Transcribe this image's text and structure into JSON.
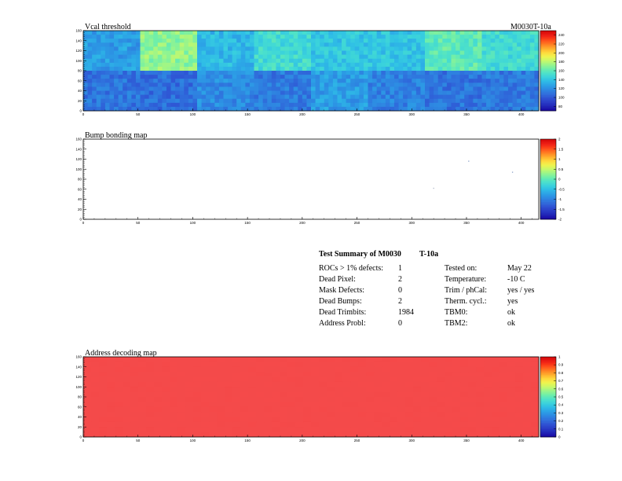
{
  "page": {
    "module_label": "M0030T-10a"
  },
  "chart_data": [
    {
      "type": "heatmap",
      "title": "Vcal threshold",
      "xlim": [
        0,
        416
      ],
      "ylim": [
        0,
        160
      ],
      "x_ticks": [
        "0",
        "50",
        "100",
        "150",
        "200",
        "250",
        "300",
        "350",
        "400"
      ],
      "y_ticks": [
        "0",
        "20",
        "40",
        "60",
        "80",
        "100",
        "120",
        "140",
        "160"
      ],
      "z_ticks": [
        "80",
        "100",
        "120",
        "140",
        "160",
        "180",
        "200",
        "220",
        "240"
      ],
      "zlim": [
        70,
        250
      ],
      "roc_grid": {
        "cols": 8,
        "rows": 2,
        "roc_width": 52,
        "roc_height": 80
      },
      "roc_mean_values": [
        [
          125,
          172,
          135,
          150,
          140,
          140,
          160,
          150
        ],
        [
          110,
          108,
          118,
          112,
          125,
          115,
          110,
          112
        ]
      ],
      "roc_rows_order": [
        "top",
        "bottom"
      ],
      "palette": [
        "#1a0aa6",
        "#2228b8",
        "#2a3ec8",
        "#2f55d4",
        "#2f6fdc",
        "#2e89e2",
        "#2ca2e6",
        "#2fbce6",
        "#3ad2dc",
        "#4ee2c8",
        "#6eeeaa",
        "#9af58a",
        "#c8f86a",
        "#f0f44c",
        "#ffd63a",
        "#ffaa2c",
        "#ff7a22",
        "#ff4a1a",
        "#f01e14",
        "#d80a0a"
      ]
    },
    {
      "type": "heatmap",
      "title": "Bump bonding map",
      "xlim": [
        0,
        416
      ],
      "ylim": [
        0,
        160
      ],
      "x_ticks": [
        "0",
        "50",
        "100",
        "150",
        "200",
        "250",
        "300",
        "350",
        "400"
      ],
      "y_ticks": [
        "0",
        "20",
        "40",
        "60",
        "80",
        "100",
        "120",
        "140",
        "160"
      ],
      "z_ticks": [
        "-2",
        "-1.5",
        "-1",
        "-0.5",
        "0",
        "0.5",
        "1",
        "1.5",
        "2"
      ],
      "zlim": [
        -2,
        2
      ],
      "dead_bumps": [
        {
          "x": 352,
          "y": 116
        },
        {
          "x": 392,
          "y": 94
        }
      ],
      "other_points": [
        {
          "x": 320,
          "y": 62
        }
      ],
      "palette": [
        "#1a0aa6",
        "#2228b8",
        "#2a3ec8",
        "#2f55d4",
        "#2f6fdc",
        "#2e89e2",
        "#2ca2e6",
        "#2fbce6",
        "#3ad2dc",
        "#4ee2c8",
        "#6eeeaa",
        "#9af58a",
        "#c8f86a",
        "#f0f44c",
        "#ffd63a",
        "#ffaa2c",
        "#ff7a22",
        "#ff4a1a",
        "#f01e14",
        "#d80a0a"
      ]
    },
    {
      "type": "heatmap",
      "title": "Address decoding map",
      "xlim": [
        0,
        416
      ],
      "ylim": [
        0,
        160
      ],
      "x_ticks": [
        "0",
        "50",
        "100",
        "150",
        "200",
        "250",
        "300",
        "350",
        "400"
      ],
      "y_ticks": [
        "0",
        "20",
        "40",
        "60",
        "80",
        "100",
        "120",
        "140",
        "160"
      ],
      "z_ticks": [
        "0",
        "0.1",
        "0.2",
        "0.3",
        "0.4",
        "0.5",
        "0.6",
        "0.7",
        "0.8",
        "0.9",
        "1"
      ],
      "zlim": [
        0,
        1
      ],
      "uniform_value": 1,
      "fill_color": "#f44a4a",
      "palette": [
        "#1a0aa6",
        "#2228b8",
        "#2a3ec8",
        "#2f55d4",
        "#2f6fdc",
        "#2e89e2",
        "#2ca2e6",
        "#2fbce6",
        "#3ad2dc",
        "#4ee2c8",
        "#6eeeaa",
        "#9af58a",
        "#c8f86a",
        "#f0f44c",
        "#ffd63a",
        "#ffaa2c",
        "#ff7a22",
        "#ff4a1a",
        "#f01e14",
        "#d80a0a"
      ]
    }
  ],
  "summary": {
    "title": "Test Summary of M0030",
    "title_suffix": "T-10a",
    "left": [
      {
        "label": "ROCs > 1% defects:",
        "value": "1"
      },
      {
        "label": "Dead Pixel:",
        "value": "2"
      },
      {
        "label": "Mask Defects:",
        "value": "0"
      },
      {
        "label": "Dead Bumps:",
        "value": "2"
      },
      {
        "label": "Dead Trimbits:",
        "value": "1984"
      },
      {
        "label": "Address Probl:",
        "value": "0"
      }
    ],
    "right": [
      {
        "label": "Tested on:",
        "value": "May 22"
      },
      {
        "label": "Temperature:",
        "value": "-10 C"
      },
      {
        "label": "Trim / phCal:",
        "value": "yes / yes"
      },
      {
        "label": "Therm. cycl.:",
        "value": "yes"
      },
      {
        "label": "TBM0:",
        "value": "ok"
      },
      {
        "label": "TBM2:",
        "value": "ok"
      }
    ]
  }
}
